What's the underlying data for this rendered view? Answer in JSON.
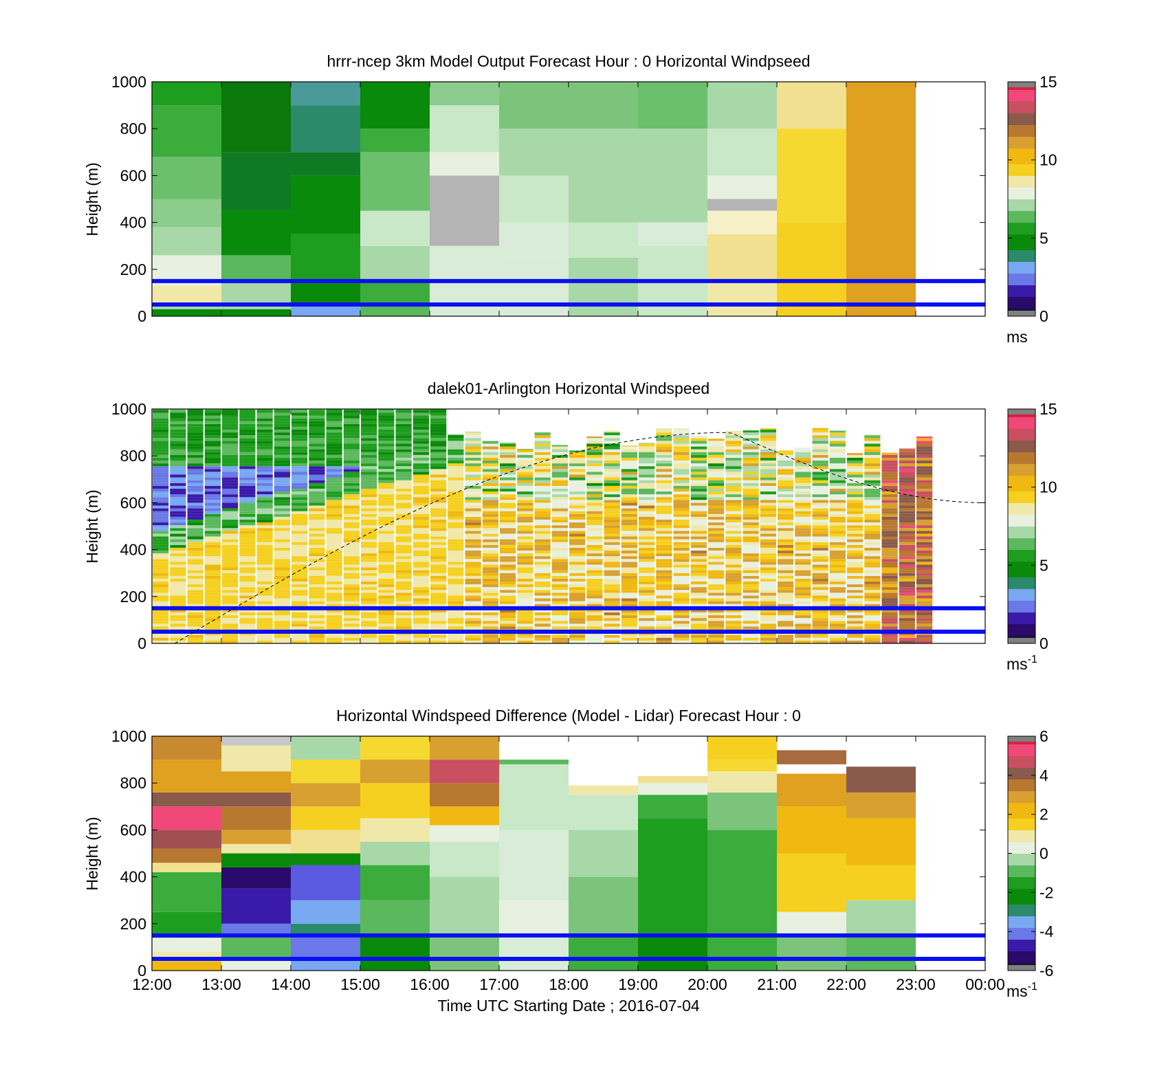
{
  "colors": {
    "cmap_stops": [
      "#141432",
      "#2a0a6a",
      "#3a1aa8",
      "#6a78e8",
      "#78a8f0",
      "#2a8a6a",
      "#0a8a0a",
      "#1e9e1e",
      "#5cb85c",
      "#a8d8a8",
      "#e8f0e0",
      "#f0e8a8",
      "#f5d020",
      "#f0b810",
      "#d8a030",
      "#b87830",
      "#8a5a4a",
      "#c85060",
      "#f04878",
      "#d82040",
      "#808080"
    ],
    "boundary_line": "#0a10f0",
    "axes": "#000000"
  },
  "chart_data": [
    {
      "type": "heatmap",
      "title": "hrrr-ncep 3km Model Output   Forecast Hour : 0 Horizontal Windpseed",
      "ylabel": "Height (m)",
      "xlabel": "",
      "xlim": [
        12,
        24
      ],
      "ylim": [
        0,
        1000
      ],
      "yticks": [
        "0",
        "200",
        "400",
        "600",
        "800",
        "1000"
      ],
      "colorbar": {
        "ticks": [
          "0",
          "5",
          "10",
          "15"
        ],
        "range": [
          0,
          15
        ],
        "unit_main": "ms",
        "unit_sup": ""
      },
      "boundary_lines_m": [
        50,
        150
      ],
      "blocks": [
        {
          "x0": 12,
          "x1": 13,
          "rows": [
            [
              0,
              30,
              "#0a8a0a"
            ],
            [
              30,
              50,
              "#a8d8a8"
            ],
            [
              50,
              130,
              "#f0e8a8"
            ],
            [
              130,
              260,
              "#e8f0e0"
            ],
            [
              260,
              380,
              "#a8d8a8"
            ],
            [
              380,
              500,
              "#8ccc8c"
            ],
            [
              500,
              680,
              "#6cbf6c"
            ],
            [
              680,
              900,
              "#3cac3c"
            ],
            [
              900,
              1000,
              "#1e9e1e"
            ]
          ]
        },
        {
          "x0": 13,
          "x1": 14,
          "rows": [
            [
              0,
              30,
              "#0a8a0a"
            ],
            [
              30,
              140,
              "#a8d8a8"
            ],
            [
              140,
              260,
              "#5cb85c"
            ],
            [
              260,
              450,
              "#0a8a0a"
            ],
            [
              450,
              700,
              "#0e7a24"
            ],
            [
              700,
              1000,
              "#0a780a"
            ]
          ]
        },
        {
          "x0": 14,
          "x1": 15,
          "rows": [
            [
              0,
              50,
              "#78a8f0"
            ],
            [
              50,
              150,
              "#0a8a0a"
            ],
            [
              150,
              350,
              "#1e9e1e"
            ],
            [
              350,
              600,
              "#0a8a0a"
            ],
            [
              600,
              700,
              "#0e7a24"
            ],
            [
              700,
              900,
              "#2a8a6a"
            ],
            [
              900,
              1000,
              "#4a9a9a"
            ]
          ]
        },
        {
          "x0": 15,
          "x1": 16,
          "rows": [
            [
              0,
              50,
              "#5cb85c"
            ],
            [
              50,
              150,
              "#3cac3c"
            ],
            [
              150,
              300,
              "#a8d8a8"
            ],
            [
              300,
              450,
              "#c8e8c8"
            ],
            [
              450,
              700,
              "#6cbf6c"
            ],
            [
              700,
              800,
              "#3cac3c"
            ],
            [
              800,
              1000,
              "#0a8a0a"
            ]
          ]
        },
        {
          "x0": 16,
          "x1": 17,
          "rows": [
            [
              0,
              300,
              "#d8ecd8"
            ],
            [
              300,
              600,
              "#b4b4b4"
            ],
            [
              600,
              700,
              "#e8f0e0"
            ],
            [
              700,
              900,
              "#c8e8c8"
            ],
            [
              900,
              1000,
              "#8ccc8c"
            ]
          ]
        },
        {
          "x0": 17,
          "x1": 18,
          "rows": [
            [
              0,
              250,
              "#d8ecd8"
            ],
            [
              250,
              400,
              "#d8ecd8"
            ],
            [
              400,
              600,
              "#c8e8c8"
            ],
            [
              600,
              800,
              "#a8d8a8"
            ],
            [
              800,
              1000,
              "#7cc47c"
            ]
          ]
        },
        {
          "x0": 18,
          "x1": 19,
          "rows": [
            [
              0,
              250,
              "#a8d8a8"
            ],
            [
              250,
              400,
              "#c8e8c8"
            ],
            [
              400,
              800,
              "#a8d8a8"
            ],
            [
              800,
              1000,
              "#7cc47c"
            ]
          ]
        },
        {
          "x0": 19,
          "x1": 20,
          "rows": [
            [
              0,
              300,
              "#c8e8c8"
            ],
            [
              300,
              400,
              "#d8ecd8"
            ],
            [
              400,
              800,
              "#a8d8a8"
            ],
            [
              800,
              1000,
              "#6cbf6c"
            ]
          ]
        },
        {
          "x0": 20,
          "x1": 21,
          "rows": [
            [
              0,
              150,
              "#f0e8a8"
            ],
            [
              150,
              350,
              "#f0e090"
            ],
            [
              350,
              450,
              "#f5f0c8"
            ],
            [
              450,
              500,
              "#b4b4b4"
            ],
            [
              500,
              600,
              "#e8f0e0"
            ],
            [
              600,
              800,
              "#c8e8c8"
            ],
            [
              800,
              1000,
              "#a8d8a8"
            ]
          ]
        },
        {
          "x0": 21,
          "x1": 22,
          "rows": [
            [
              0,
              400,
              "#f5d020"
            ],
            [
              400,
              800,
              "#f5d830"
            ],
            [
              800,
              1000,
              "#f0e090"
            ]
          ]
        },
        {
          "x0": 22,
          "x1": 23,
          "rows": [
            [
              0,
              1000,
              "#e0a020"
            ]
          ]
        }
      ]
    },
    {
      "type": "heatmap",
      "title": "dalek01-Arlington  Horizontal Windspeed",
      "ylabel": "Height (m)",
      "xlabel": "",
      "xlim": [
        12,
        24
      ],
      "ylim": [
        0,
        1000
      ],
      "yticks": [
        "0",
        "200",
        "400",
        "600",
        "800",
        "1000"
      ],
      "colorbar": {
        "ticks": [
          "0",
          "5",
          "10",
          "15"
        ],
        "range": [
          0,
          15
        ],
        "unit_main": "ms",
        "unit_sup": "-1"
      },
      "boundary_lines_m": [
        50,
        150
      ],
      "curve": {
        "label": "",
        "style": "dashed",
        "x_start": 12.33,
        "x_peak": 20.33,
        "x_end": 24,
        "y_peak": 900,
        "y_end": 600
      },
      "profile_count": 48
    },
    {
      "type": "heatmap",
      "title": "Horizontal Windspeed Difference (Model - Lidar) Forecast Hour : 0",
      "ylabel": "Height (m)",
      "xlabel": "Time UTC  Starting Date ; 2016-07-04",
      "xlim": [
        12,
        24
      ],
      "ylim": [
        0,
        1000
      ],
      "yticks": [
        "0",
        "200",
        "400",
        "600",
        "800",
        "1000"
      ],
      "xticks": [
        "12:00",
        "13:00",
        "14:00",
        "15:00",
        "16:00",
        "17:00",
        "18:00",
        "19:00",
        "20:00",
        "21:00",
        "22:00",
        "23:00",
        "00:00"
      ],
      "colorbar": {
        "ticks": [
          "-6",
          "-4",
          "-2",
          "0",
          "2",
          "4",
          "6"
        ],
        "range": [
          -6,
          6
        ],
        "unit_main": "ms",
        "unit_sup": "-1"
      },
      "boundary_lines_m": [
        50,
        150
      ],
      "blocks": [
        {
          "x0": 12,
          "x1": 13,
          "rows": [
            [
              0,
              40,
              "#f0b810"
            ],
            [
              40,
              80,
              "#f0e8a8"
            ],
            [
              80,
              140,
              "#e8f0e0"
            ],
            [
              140,
              250,
              "#1e9e1e"
            ],
            [
              250,
              420,
              "#3cac3c"
            ],
            [
              420,
              460,
              "#f0e090"
            ],
            [
              460,
              520,
              "#b87830"
            ],
            [
              520,
              600,
              "#a05050"
            ],
            [
              600,
              700,
              "#f04878"
            ],
            [
              700,
              760,
              "#8a5a4a"
            ],
            [
              760,
              900,
              "#e0a020"
            ],
            [
              900,
              1000,
              "#c88a30"
            ]
          ]
        },
        {
          "x0": 13,
          "x1": 14,
          "rows": [
            [
              0,
              50,
              "#e8f0e0"
            ],
            [
              50,
              150,
              "#5cb85c"
            ],
            [
              150,
              200,
              "#6a78e8"
            ],
            [
              200,
              350,
              "#3a1aa8"
            ],
            [
              350,
              440,
              "#2a0a6a"
            ],
            [
              440,
              500,
              "#0a8a0a"
            ],
            [
              500,
              540,
              "#f0e8a8"
            ],
            [
              540,
              600,
              "#d8a030"
            ],
            [
              600,
              700,
              "#b87830"
            ],
            [
              700,
              760,
              "#8a5a4a"
            ],
            [
              760,
              850,
              "#e0a020"
            ],
            [
              850,
              960,
              "#f0e8a8"
            ],
            [
              960,
              1000,
              "#c8c8c8"
            ]
          ]
        },
        {
          "x0": 14,
          "x1": 15,
          "rows": [
            [
              0,
              50,
              "#78a8f0"
            ],
            [
              50,
              150,
              "#6a78e8"
            ],
            [
              150,
              200,
              "#2a8a6a"
            ],
            [
              200,
              300,
              "#78a8f0"
            ],
            [
              300,
              450,
              "#5a5ae0"
            ],
            [
              450,
              500,
              "#0a8a0a"
            ],
            [
              500,
              600,
              "#f0e090"
            ],
            [
              600,
              700,
              "#f5d020"
            ],
            [
              700,
              800,
              "#d8a030"
            ],
            [
              800,
              900,
              "#f5d830"
            ],
            [
              900,
              1000,
              "#a8d8a8"
            ]
          ]
        },
        {
          "x0": 15,
          "x1": 16,
          "rows": [
            [
              0,
              50,
              "#0a8a0a"
            ],
            [
              50,
              150,
              "#0a8a0a"
            ],
            [
              150,
              300,
              "#5cb85c"
            ],
            [
              300,
              450,
              "#3cac3c"
            ],
            [
              450,
              550,
              "#a8d8a8"
            ],
            [
              550,
              650,
              "#f0e8a8"
            ],
            [
              650,
              800,
              "#f5d020"
            ],
            [
              800,
              900,
              "#d8a030"
            ],
            [
              900,
              1000,
              "#f5d830"
            ]
          ]
        },
        {
          "x0": 16,
          "x1": 17,
          "rows": [
            [
              0,
              150,
              "#7cc47c"
            ],
            [
              150,
              400,
              "#a8d8a8"
            ],
            [
              400,
              550,
              "#c8e8c8"
            ],
            [
              550,
              620,
              "#e8f0e0"
            ],
            [
              620,
              700,
              "#f0b810"
            ],
            [
              700,
              800,
              "#b87830"
            ],
            [
              800,
              900,
              "#c85060"
            ],
            [
              900,
              1000,
              "#d8a030"
            ]
          ]
        },
        {
          "x0": 17,
          "x1": 18,
          "rows": [
            [
              0,
              150,
              "#d8ecd8"
            ],
            [
              150,
              300,
              "#e8f0e0"
            ],
            [
              300,
              600,
              "#d8ecd8"
            ],
            [
              600,
              880,
              "#c8e8c8"
            ],
            [
              880,
              900,
              "#5cb85c"
            ]
          ]
        },
        {
          "x0": 18,
          "x1": 19,
          "rows": [
            [
              0,
              150,
              "#3cac3c"
            ],
            [
              150,
              400,
              "#7cc47c"
            ],
            [
              400,
              600,
              "#a8d8a8"
            ],
            [
              600,
              750,
              "#c8e8c8"
            ],
            [
              750,
              790,
              "#f0e8a8"
            ]
          ]
        },
        {
          "x0": 19,
          "x1": 20,
          "rows": [
            [
              0,
              150,
              "#0a8a0a"
            ],
            [
              150,
              650,
              "#1e9e1e"
            ],
            [
              650,
              750,
              "#3cac3c"
            ],
            [
              750,
              800,
              "#e8f0e0"
            ],
            [
              800,
              830,
              "#f0e090"
            ]
          ]
        },
        {
          "x0": 20,
          "x1": 21,
          "rows": [
            [
              0,
              150,
              "#3cac3c"
            ],
            [
              150,
              600,
              "#3cac3c"
            ],
            [
              600,
              760,
              "#7cc47c"
            ],
            [
              760,
              850,
              "#f0e8a8"
            ],
            [
              850,
              900,
              "#f5d830"
            ],
            [
              900,
              1000,
              "#f5d020"
            ]
          ]
        },
        {
          "x0": 21,
          "x1": 22,
          "rows": [
            [
              0,
              150,
              "#7cc47c"
            ],
            [
              150,
              250,
              "#e8f0e0"
            ],
            [
              250,
              500,
              "#f5d020"
            ],
            [
              500,
              700,
              "#f0b810"
            ],
            [
              700,
              840,
              "#e0a020"
            ],
            [
              880,
              940,
              "#a86a40"
            ]
          ]
        },
        {
          "x0": 22,
          "x1": 23,
          "rows": [
            [
              0,
              150,
              "#5cb85c"
            ],
            [
              150,
              300,
              "#a8d8a8"
            ],
            [
              300,
              450,
              "#f5d020"
            ],
            [
              450,
              650,
              "#f0b810"
            ],
            [
              650,
              760,
              "#d8a030"
            ],
            [
              760,
              870,
              "#8a5a4a"
            ]
          ]
        }
      ]
    }
  ]
}
